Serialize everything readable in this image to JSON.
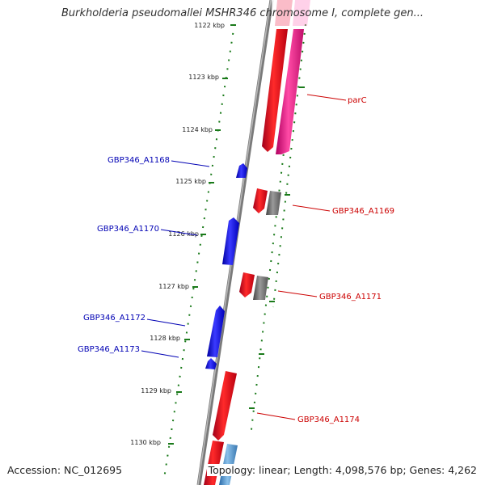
{
  "title": "Burkholderia pseudomallei MSHR346 chromosome I, complete gen...",
  "accession_text": "Accession: NC_012695",
  "summary_text": "Topology: linear; Length: 4,098,576 bp; Genes: 4,262",
  "ruler": [
    {
      "label": "1122 kbp"
    },
    {
      "label": "1123 kbp"
    },
    {
      "label": "1124 kbp"
    },
    {
      "label": "1125 kbp"
    },
    {
      "label": "1126 kbp"
    },
    {
      "label": "1127 kbp"
    },
    {
      "label": "1128 kbp"
    },
    {
      "label": "1129 kbp"
    },
    {
      "label": "1130 kbp"
    }
  ],
  "genes": [
    {
      "label": "parC",
      "strand": "forward",
      "color": "#e8102a"
    },
    {
      "label": "GBP346_A1168",
      "strand": "reverse",
      "color": "#1010e8"
    },
    {
      "label": "GBP346_A1169",
      "strand": "forward",
      "color": "#e8102a"
    },
    {
      "label": "GBP346_A1170",
      "strand": "reverse",
      "color": "#1010e8"
    },
    {
      "label": "GBP346_A1171",
      "strand": "forward",
      "color": "#e8102a"
    },
    {
      "label": "GBP346_A1172",
      "strand": "reverse",
      "color": "#1010e8"
    },
    {
      "label": "GBP346_A1173",
      "strand": "reverse",
      "color": "#1010e8"
    },
    {
      "label": "GBP346_A1174",
      "strand": "forward",
      "color": "#e8102a"
    }
  ],
  "colors": {
    "gene_forward": "#e8102a",
    "gene_reverse": "#1010e8",
    "cds_pink": "#f0188c",
    "cds_gray": "#6e6e6e",
    "cds_lightblue": "#4a8cc8",
    "backbone": "#8a8a8a",
    "ticks": "#1a7a1a",
    "label_forward": "#cc0000",
    "label_reverse": "#0000b4"
  }
}
